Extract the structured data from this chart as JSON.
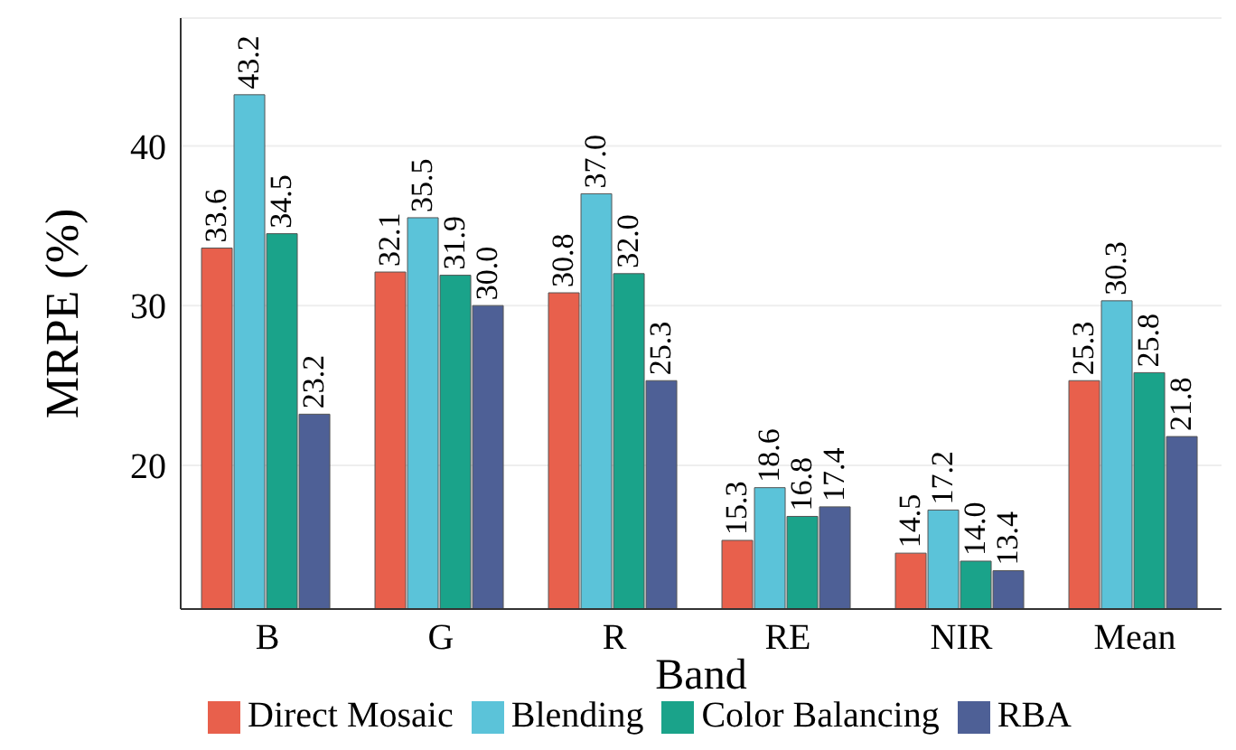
{
  "chart_data": {
    "type": "bar",
    "xlabel": "Band",
    "ylabel": "MRPE (%)",
    "categories": [
      "B",
      "G",
      "R",
      "RE",
      "NIR",
      "Mean"
    ],
    "series": [
      {
        "name": "Direct Mosaic",
        "color": "#e8604c",
        "values": [
          33.6,
          32.1,
          30.8,
          15.3,
          14.5,
          25.3
        ],
        "value_labels": [
          "33.6",
          "32.1",
          "30.8",
          "15.3",
          "14.5",
          "25.3"
        ]
      },
      {
        "name": "Blending",
        "color": "#5bc3d9",
        "values": [
          43.2,
          35.5,
          37.0,
          18.6,
          17.2,
          30.3
        ],
        "value_labels": [
          "43.2",
          "35.5",
          "37.0",
          "18.6",
          "17.2",
          "30.3"
        ]
      },
      {
        "name": "Color Balancing",
        "color": "#1aa38a",
        "values": [
          34.5,
          31.9,
          32.0,
          16.8,
          14.0,
          25.8
        ],
        "value_labels": [
          "34.5",
          "31.9",
          "32.0",
          "16.8",
          "14.0",
          "25.8"
        ]
      },
      {
        "name": "RBA",
        "color": "#4e6096",
        "values": [
          23.2,
          30.0,
          25.3,
          17.4,
          13.4,
          21.8
        ],
        "value_labels": [
          "23.2",
          "30.0",
          "25.3",
          "17.4",
          "13.4",
          "21.8"
        ]
      }
    ],
    "ylim": [
      11,
      48
    ],
    "yticks": [
      20,
      30,
      40
    ],
    "grid": "y",
    "legend": "bottom"
  }
}
